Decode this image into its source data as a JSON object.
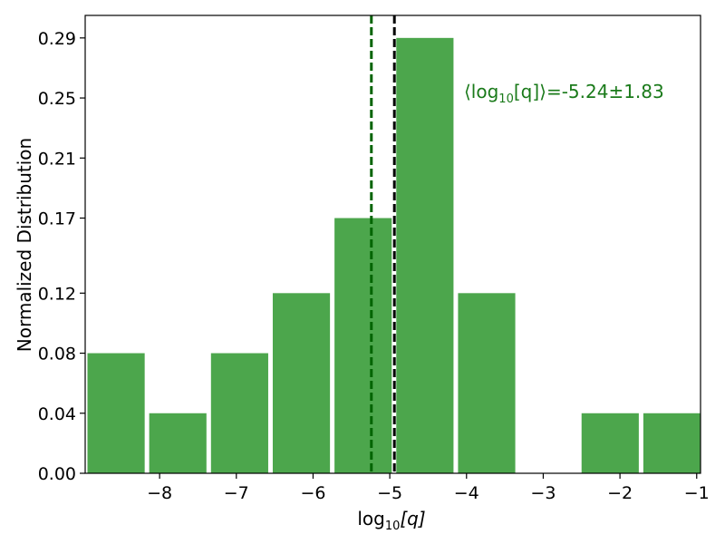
{
  "chart_data": {
    "type": "bar",
    "xlabel": "log",
    "xlabel_sub": "10",
    "xlabel_arg": "[q]",
    "ylabel": "Normalized Distribution",
    "xlim": [
      -8.97,
      -0.95
    ],
    "ylim": [
      0,
      0.305
    ],
    "x_ticks": [
      -8,
      -7,
      -6,
      -5,
      -4,
      -3,
      -2,
      -1
    ],
    "x_tick_labels": [
      "−8",
      "−7",
      "−6",
      "−5",
      "−4",
      "−3",
      "−2",
      "−1"
    ],
    "y_ticks": [
      0.0,
      0.04,
      0.08,
      0.12,
      0.17,
      0.21,
      0.25,
      0.29
    ],
    "y_tick_labels": [
      "0.00",
      "0.04",
      "0.08",
      "0.12",
      "0.17",
      "0.21",
      "0.25",
      "0.29"
    ],
    "bin_edges": [
      -8.97,
      -8.165,
      -7.36,
      -6.555,
      -5.75,
      -4.945,
      -4.14,
      -3.335,
      -2.53,
      -1.725,
      -0.92
    ],
    "values": [
      0.08,
      0.04,
      0.08,
      0.12,
      0.17,
      0.29,
      0.12,
      0.0,
      0.04,
      0.04
    ],
    "bar_color": "#4ca64c",
    "vlines": [
      {
        "x": -5.24,
        "color": "#006400",
        "style": "dashed"
      },
      {
        "x": -4.94,
        "color": "#000000",
        "style": "dashed"
      }
    ],
    "annotation": {
      "prefix": "⟨log",
      "sub": "10",
      "suffix": "[q]⟩=-5.24±1.83",
      "color": "#1a7a1a"
    },
    "grid": false,
    "legend": "none"
  }
}
